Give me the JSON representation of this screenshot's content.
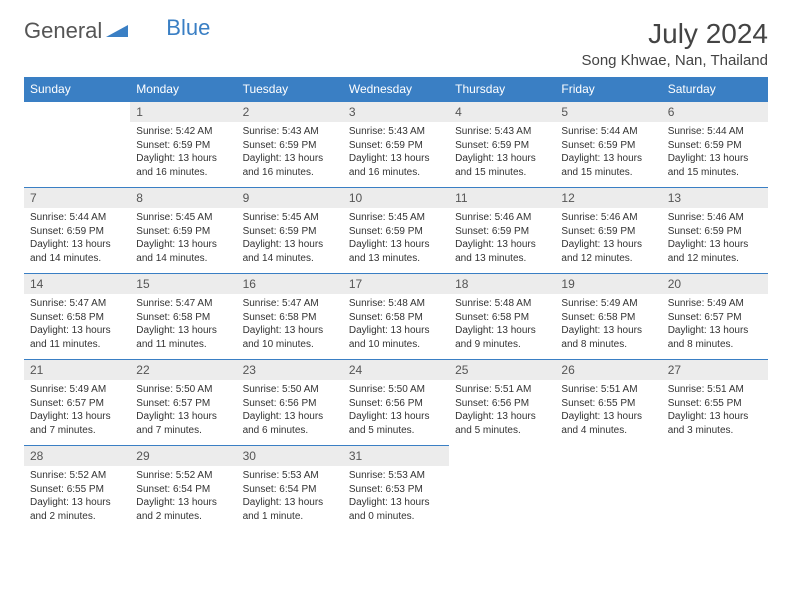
{
  "brand": {
    "general": "General",
    "blue": "Blue"
  },
  "header": {
    "title": "July 2024",
    "location": "Song Khwae, Nan, Thailand"
  },
  "colors": {
    "accent": "#3a7fc4",
    "daynum_bg": "#ececec",
    "text": "#333333",
    "bg": "#ffffff"
  },
  "calendar": {
    "type": "table",
    "day_headers": [
      "Sunday",
      "Monday",
      "Tuesday",
      "Wednesday",
      "Thursday",
      "Friday",
      "Saturday"
    ],
    "weeks": [
      [
        null,
        {
          "n": "1",
          "sr": "Sunrise: 5:42 AM",
          "ss": "Sunset: 6:59 PM",
          "d1": "Daylight: 13 hours",
          "d2": "and 16 minutes."
        },
        {
          "n": "2",
          "sr": "Sunrise: 5:43 AM",
          "ss": "Sunset: 6:59 PM",
          "d1": "Daylight: 13 hours",
          "d2": "and 16 minutes."
        },
        {
          "n": "3",
          "sr": "Sunrise: 5:43 AM",
          "ss": "Sunset: 6:59 PM",
          "d1": "Daylight: 13 hours",
          "d2": "and 16 minutes."
        },
        {
          "n": "4",
          "sr": "Sunrise: 5:43 AM",
          "ss": "Sunset: 6:59 PM",
          "d1": "Daylight: 13 hours",
          "d2": "and 15 minutes."
        },
        {
          "n": "5",
          "sr": "Sunrise: 5:44 AM",
          "ss": "Sunset: 6:59 PM",
          "d1": "Daylight: 13 hours",
          "d2": "and 15 minutes."
        },
        {
          "n": "6",
          "sr": "Sunrise: 5:44 AM",
          "ss": "Sunset: 6:59 PM",
          "d1": "Daylight: 13 hours",
          "d2": "and 15 minutes."
        }
      ],
      [
        {
          "n": "7",
          "sr": "Sunrise: 5:44 AM",
          "ss": "Sunset: 6:59 PM",
          "d1": "Daylight: 13 hours",
          "d2": "and 14 minutes."
        },
        {
          "n": "8",
          "sr": "Sunrise: 5:45 AM",
          "ss": "Sunset: 6:59 PM",
          "d1": "Daylight: 13 hours",
          "d2": "and 14 minutes."
        },
        {
          "n": "9",
          "sr": "Sunrise: 5:45 AM",
          "ss": "Sunset: 6:59 PM",
          "d1": "Daylight: 13 hours",
          "d2": "and 14 minutes."
        },
        {
          "n": "10",
          "sr": "Sunrise: 5:45 AM",
          "ss": "Sunset: 6:59 PM",
          "d1": "Daylight: 13 hours",
          "d2": "and 13 minutes."
        },
        {
          "n": "11",
          "sr": "Sunrise: 5:46 AM",
          "ss": "Sunset: 6:59 PM",
          "d1": "Daylight: 13 hours",
          "d2": "and 13 minutes."
        },
        {
          "n": "12",
          "sr": "Sunrise: 5:46 AM",
          "ss": "Sunset: 6:59 PM",
          "d1": "Daylight: 13 hours",
          "d2": "and 12 minutes."
        },
        {
          "n": "13",
          "sr": "Sunrise: 5:46 AM",
          "ss": "Sunset: 6:59 PM",
          "d1": "Daylight: 13 hours",
          "d2": "and 12 minutes."
        }
      ],
      [
        {
          "n": "14",
          "sr": "Sunrise: 5:47 AM",
          "ss": "Sunset: 6:58 PM",
          "d1": "Daylight: 13 hours",
          "d2": "and 11 minutes."
        },
        {
          "n": "15",
          "sr": "Sunrise: 5:47 AM",
          "ss": "Sunset: 6:58 PM",
          "d1": "Daylight: 13 hours",
          "d2": "and 11 minutes."
        },
        {
          "n": "16",
          "sr": "Sunrise: 5:47 AM",
          "ss": "Sunset: 6:58 PM",
          "d1": "Daylight: 13 hours",
          "d2": "and 10 minutes."
        },
        {
          "n": "17",
          "sr": "Sunrise: 5:48 AM",
          "ss": "Sunset: 6:58 PM",
          "d1": "Daylight: 13 hours",
          "d2": "and 10 minutes."
        },
        {
          "n": "18",
          "sr": "Sunrise: 5:48 AM",
          "ss": "Sunset: 6:58 PM",
          "d1": "Daylight: 13 hours",
          "d2": "and 9 minutes."
        },
        {
          "n": "19",
          "sr": "Sunrise: 5:49 AM",
          "ss": "Sunset: 6:58 PM",
          "d1": "Daylight: 13 hours",
          "d2": "and 8 minutes."
        },
        {
          "n": "20",
          "sr": "Sunrise: 5:49 AM",
          "ss": "Sunset: 6:57 PM",
          "d1": "Daylight: 13 hours",
          "d2": "and 8 minutes."
        }
      ],
      [
        {
          "n": "21",
          "sr": "Sunrise: 5:49 AM",
          "ss": "Sunset: 6:57 PM",
          "d1": "Daylight: 13 hours",
          "d2": "and 7 minutes."
        },
        {
          "n": "22",
          "sr": "Sunrise: 5:50 AM",
          "ss": "Sunset: 6:57 PM",
          "d1": "Daylight: 13 hours",
          "d2": "and 7 minutes."
        },
        {
          "n": "23",
          "sr": "Sunrise: 5:50 AM",
          "ss": "Sunset: 6:56 PM",
          "d1": "Daylight: 13 hours",
          "d2": "and 6 minutes."
        },
        {
          "n": "24",
          "sr": "Sunrise: 5:50 AM",
          "ss": "Sunset: 6:56 PM",
          "d1": "Daylight: 13 hours",
          "d2": "and 5 minutes."
        },
        {
          "n": "25",
          "sr": "Sunrise: 5:51 AM",
          "ss": "Sunset: 6:56 PM",
          "d1": "Daylight: 13 hours",
          "d2": "and 5 minutes."
        },
        {
          "n": "26",
          "sr": "Sunrise: 5:51 AM",
          "ss": "Sunset: 6:55 PM",
          "d1": "Daylight: 13 hours",
          "d2": "and 4 minutes."
        },
        {
          "n": "27",
          "sr": "Sunrise: 5:51 AM",
          "ss": "Sunset: 6:55 PM",
          "d1": "Daylight: 13 hours",
          "d2": "and 3 minutes."
        }
      ],
      [
        {
          "n": "28",
          "sr": "Sunrise: 5:52 AM",
          "ss": "Sunset: 6:55 PM",
          "d1": "Daylight: 13 hours",
          "d2": "and 2 minutes."
        },
        {
          "n": "29",
          "sr": "Sunrise: 5:52 AM",
          "ss": "Sunset: 6:54 PM",
          "d1": "Daylight: 13 hours",
          "d2": "and 2 minutes."
        },
        {
          "n": "30",
          "sr": "Sunrise: 5:53 AM",
          "ss": "Sunset: 6:54 PM",
          "d1": "Daylight: 13 hours",
          "d2": "and 1 minute."
        },
        {
          "n": "31",
          "sr": "Sunrise: 5:53 AM",
          "ss": "Sunset: 6:53 PM",
          "d1": "Daylight: 13 hours",
          "d2": "and 0 minutes."
        },
        null,
        null,
        null
      ]
    ]
  }
}
